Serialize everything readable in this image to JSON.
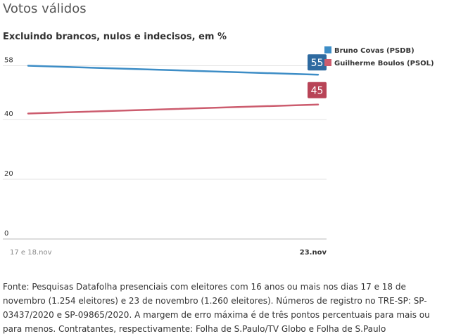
{
  "header": {
    "title": "Votos válidos",
    "subtitle": "Excluindo brancos, nulos e indecisos, em %"
  },
  "chart_data": {
    "type": "line",
    "title": "Votos válidos",
    "subtitle": "Excluindo brancos, nulos e indecisos, em %",
    "categories": [
      "17 e 18.nov",
      "23.nov"
    ],
    "yticks": [
      0,
      20,
      40,
      58
    ],
    "ylim": [
      0,
      60
    ],
    "xlabel": "",
    "ylabel": "",
    "grid": true,
    "legend_position": "top-right",
    "series": [
      {
        "name": "Bruno Covas (PSDB)",
        "values": [
          58,
          55
        ],
        "end_label": "55",
        "color": "#3d8dc6",
        "label_color": "#2e6aa0"
      },
      {
        "name": "Guilherme Boulos (PSOL)",
        "values": [
          42,
          45
        ],
        "end_label": "45",
        "color": "#cc5c6e",
        "label_color": "#b84457"
      }
    ]
  },
  "footer": {
    "source": "Fonte: Pesquisas Datafolha presenciais com eleitores com 16 anos ou mais nos dias 17 e 18 de novembro (1.254 eleitores) e 23 de novembro (1.260 eleitores). Números de registro no TRE-SP: SP-03437/2020 e SP-09865/2020. A margem de erro máxima é de três pontos percentuais para mais ou para menos. Contratantes, respectivamente: Folha de S.Paulo/TV Globo e Folha de S.Paulo"
  }
}
